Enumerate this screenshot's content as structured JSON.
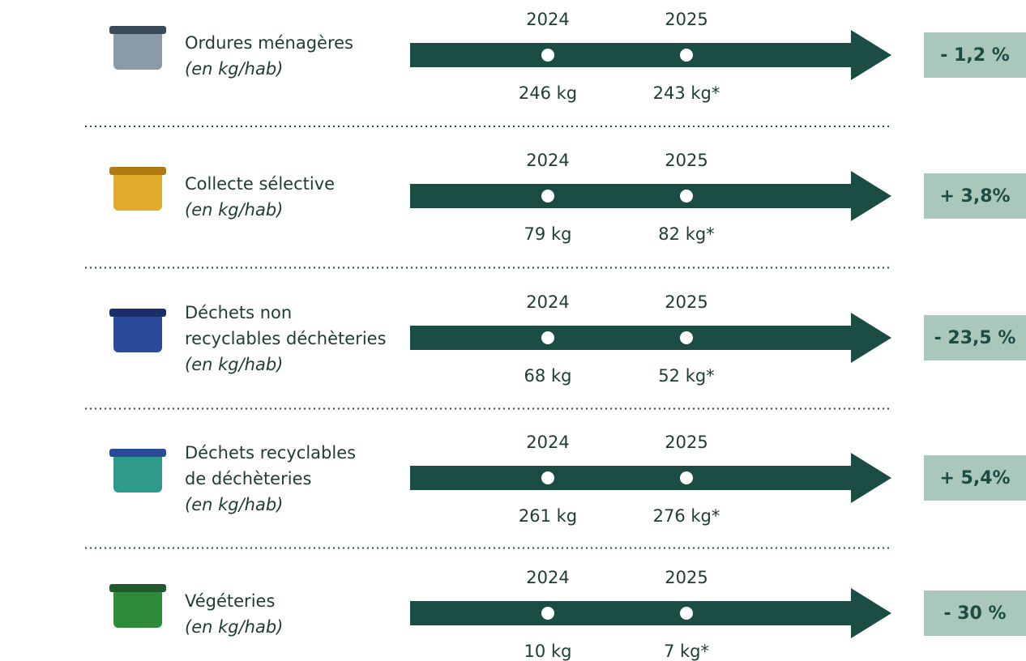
{
  "rows": [
    {
      "label": [
        "Ordures ménagères"
      ],
      "unit": "(en kg/hab)",
      "years": [
        "2024",
        "2025"
      ],
      "values": [
        "246 kg",
        "243 kg*"
      ],
      "change": "- 1,2 %"
    },
    {
      "label": [
        "Collecte sélective"
      ],
      "unit": "(en kg/hab)",
      "years": [
        "2024",
        "2025"
      ],
      "values": [
        "79 kg",
        "82 kg*"
      ],
      "change": "+ 3,8%"
    },
    {
      "label": [
        "Déchets non",
        "recyclables déchèteries"
      ],
      "unit": "(en kg/hab)",
      "years": [
        "2024",
        "2025"
      ],
      "values": [
        "68 kg",
        "52 kg*"
      ],
      "change": "- 23,5 %"
    },
    {
      "label": [
        "Déchets recyclables",
        "de déchèteries"
      ],
      "unit": "(en kg/hab)",
      "years": [
        "2024",
        "2025"
      ],
      "values": [
        "261 kg",
        "276 kg*"
      ],
      "change": "+ 5,4%"
    },
    {
      "label": [
        "Végéteries"
      ],
      "unit": "(en kg/hab)",
      "years": [
        "2024",
        "2025"
      ],
      "values": [
        "10 kg",
        "7 kg*"
      ],
      "change": "- 30 %"
    }
  ]
}
